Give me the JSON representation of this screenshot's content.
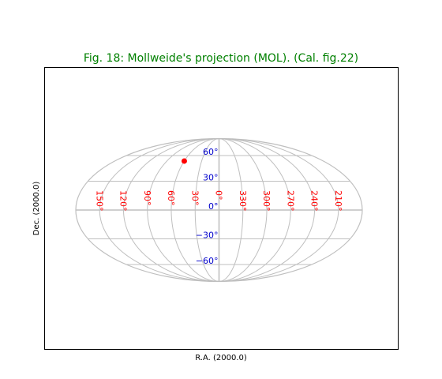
{
  "chart_data": {
    "type": "scatter",
    "title": "Fig. 18: Mollweide's projection (MOL). (Cal. fig.22)",
    "xlabel": "R.A. (2000.0)",
    "ylabel": "Dec. (2000.0)",
    "projection": "Mollweide",
    "grid": true,
    "ra_graticule": [
      0,
      30,
      60,
      90,
      120,
      150,
      180,
      210,
      240,
      270,
      300,
      330
    ],
    "ra_tick_labels": [
      {
        "ra": 150,
        "label": "150°"
      },
      {
        "ra": 120,
        "label": "120°"
      },
      {
        "ra": 90,
        "label": "90°"
      },
      {
        "ra": 60,
        "label": "60°"
      },
      {
        "ra": 30,
        "label": "30°"
      },
      {
        "ra": 0,
        "label": "0°"
      },
      {
        "ra": 330,
        "label": "330°"
      },
      {
        "ra": 300,
        "label": "300°"
      },
      {
        "ra": 270,
        "label": "270°"
      },
      {
        "ra": 240,
        "label": "240°"
      },
      {
        "ra": 210,
        "label": "210°"
      }
    ],
    "dec_graticule": [
      -60,
      -30,
      0,
      30,
      60
    ],
    "dec_tick_labels": [
      {
        "dec": 60,
        "label": "60°"
      },
      {
        "dec": 30,
        "label": "30°"
      },
      {
        "dec": 0,
        "label": "0°"
      },
      {
        "dec": -30,
        "label": "−30°"
      },
      {
        "dec": -60,
        "label": "−60°"
      }
    ],
    "points": [
      {
        "ra": 60,
        "dec": 53
      }
    ],
    "colors": {
      "title": "#008000",
      "grid": "#bfbfbf",
      "ra_labels": "#ff0000",
      "dec_labels": "#0000cc",
      "marker": "#ff0000"
    }
  }
}
